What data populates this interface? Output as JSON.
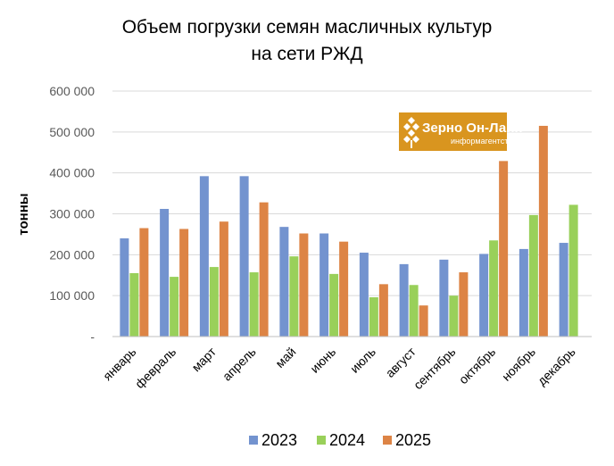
{
  "chart_data": {
    "type": "bar",
    "title_lines": [
      "Объем погрузки семян масличных культур",
      "на сети РЖД"
    ],
    "ylabel": "тонны",
    "xlabel": "",
    "ylim": [
      0,
      600000
    ],
    "y_ticks": [
      {
        "value": 0,
        "label": "-"
      },
      {
        "value": 100000,
        "label": "100 000"
      },
      {
        "value": 200000,
        "label": "200 000"
      },
      {
        "value": 300000,
        "label": "300 000"
      },
      {
        "value": 400000,
        "label": "400 000"
      },
      {
        "value": 500000,
        "label": "500 000"
      },
      {
        "value": 600000,
        "label": "600 000"
      }
    ],
    "grid": true,
    "legend_position": "bottom",
    "categories": [
      "январь",
      "февраль",
      "март",
      "апрель",
      "май",
      "июнь",
      "июль",
      "август",
      "сентябрь",
      "октябрь",
      "ноябрь",
      "декабрь"
    ],
    "series": [
      {
        "name": "2023",
        "color": "#7393cf",
        "values": [
          240000,
          312000,
          392000,
          392000,
          268000,
          252000,
          205000,
          177000,
          188000,
          202000,
          214000,
          229000
        ]
      },
      {
        "name": "2024",
        "color": "#99d05a",
        "values": [
          155000,
          146000,
          170000,
          157000,
          196000,
          153000,
          96000,
          126000,
          100000,
          235000,
          297000,
          322000
        ]
      },
      {
        "name": "2025",
        "color": "#dd8445",
        "values": [
          265000,
          263000,
          281000,
          328000,
          252000,
          232000,
          128000,
          76000,
          157000,
          429000,
          515000,
          null
        ]
      }
    ]
  },
  "logo": {
    "name": "Зерно Он-Лайн",
    "subtitle": "информагентство",
    "background": "#d9951f",
    "icon": "wheat-ear-icon"
  }
}
